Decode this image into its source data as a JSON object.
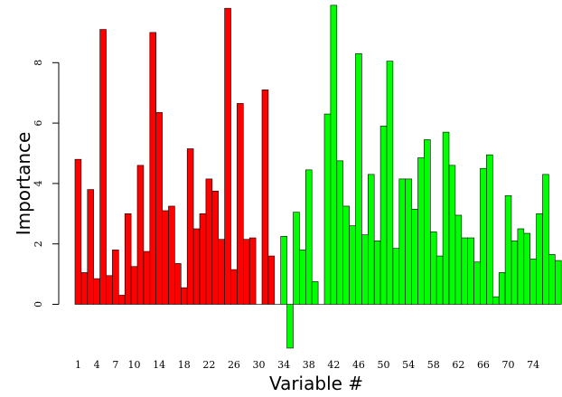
{
  "chart_data": {
    "type": "bar",
    "xlabel": "Variable #",
    "ylabel": "Importance",
    "ylim": [
      -1.5,
      10
    ],
    "ytick_values": [
      0,
      2,
      4,
      6,
      8
    ],
    "ytick_labels": [
      "0",
      "2",
      "4",
      "6",
      "8"
    ],
    "xtick_labels": [
      "1",
      "4",
      "7",
      "10",
      "14",
      "18",
      "22",
      "26",
      "30",
      "34",
      "38",
      "42",
      "46",
      "50",
      "54",
      "58",
      "62",
      "66",
      "70",
      "74"
    ],
    "xtick_variables": [
      1,
      4,
      7,
      10,
      14,
      18,
      22,
      26,
      30,
      34,
      38,
      42,
      46,
      50,
      54,
      58,
      62,
      66,
      70,
      74
    ],
    "grid": false,
    "legend": "none",
    "colors": {
      "group_a": "#ff0000",
      "group_b": "#00ff00",
      "outline": "#000000"
    },
    "series": [
      {
        "group": "group_a",
        "color": "#ff0000",
        "variables": [
          1,
          2,
          3,
          4,
          5,
          6,
          7,
          8,
          9,
          10,
          11,
          12,
          13,
          14,
          15,
          16,
          17,
          18,
          19,
          20,
          21,
          22,
          23,
          24,
          25,
          26,
          27,
          28,
          29,
          30,
          31,
          32,
          33
        ],
        "values": [
          4.8,
          1.05,
          3.8,
          0.85,
          9.1,
          0.95,
          1.8,
          0.3,
          3.0,
          1.25,
          4.6,
          1.75,
          9.0,
          6.35,
          3.1,
          3.25,
          1.35,
          0.55,
          5.15,
          2.5,
          3.0,
          4.15,
          3.75,
          2.15,
          9.8,
          1.15,
          6.65,
          2.15,
          2.2,
          0.0,
          7.1,
          1.6,
          0.0
        ]
      },
      {
        "group": "group_b",
        "color": "#00ff00",
        "variables": [
          34,
          35,
          36,
          37,
          38,
          39,
          40,
          41,
          42,
          43,
          44,
          45,
          46,
          47,
          48,
          49,
          50,
          51,
          52,
          53,
          54,
          55,
          56,
          57,
          58,
          59,
          60,
          61,
          62,
          63,
          64,
          65,
          66,
          67,
          68,
          69,
          70,
          71,
          72,
          73,
          74,
          75,
          76
        ],
        "values": [
          2.25,
          -1.45,
          3.05,
          1.8,
          4.45,
          0.75,
          0.0,
          6.3,
          9.9,
          4.75,
          3.25,
          2.6,
          8.3,
          2.3,
          4.3,
          2.1,
          5.9,
          8.05,
          1.85,
          4.15,
          4.15,
          3.15,
          4.85,
          5.45,
          2.4,
          1.6,
          5.7,
          4.6,
          2.95,
          2.2,
          2.2,
          1.4,
          4.5,
          4.95,
          0.25,
          1.05,
          3.6,
          2.1,
          2.5,
          2.35,
          1.5,
          3.0,
          4.3
        ]
      },
      {
        "group": "group_b",
        "color": "#00ff00",
        "variables": [
          77,
          78
        ],
        "values": [
          1.65,
          1.45
        ]
      }
    ]
  }
}
